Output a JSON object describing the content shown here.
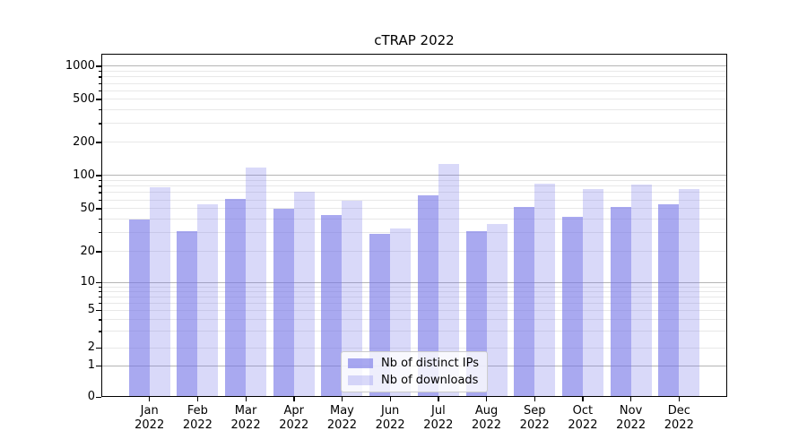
{
  "title": "cTRAP 2022",
  "chart_data": {
    "type": "bar",
    "title": "cTRAP 2022",
    "categories": [
      "Jan 2022",
      "Feb 2022",
      "Mar 2022",
      "Apr 2022",
      "May 2022",
      "Jun 2022",
      "Jul 2022",
      "Aug 2022",
      "Sep 2022",
      "Oct 2022",
      "Nov 2022",
      "Dec 2022"
    ],
    "series": [
      {
        "name": "Nb of distinct IPs",
        "color": "#a4a4ef",
        "values": [
          40,
          31,
          61,
          50,
          44,
          29,
          66,
          31,
          52,
          42,
          52,
          55
        ]
      },
      {
        "name": "Nb of downloads",
        "color": "#d9d9f8",
        "values": [
          78,
          55,
          118,
          71,
          59,
          33,
          128,
          36,
          85,
          75,
          83,
          76
        ]
      }
    ],
    "yscale": "symlog",
    "ylim": [
      0,
      1300
    ],
    "yticks": [
      0,
      1,
      2,
      5,
      10,
      20,
      50,
      100,
      200,
      500,
      1000
    ],
    "ytick_labels": [
      "0",
      "1",
      "2",
      "5",
      "10",
      "20",
      "50",
      "100",
      "200",
      "500",
      "1000"
    ],
    "major_gridlines": [
      1,
      10,
      100,
      1000
    ],
    "minor_gridlines": [
      2,
      3,
      4,
      5,
      6,
      7,
      8,
      9,
      20,
      30,
      40,
      50,
      60,
      70,
      80,
      90,
      200,
      300,
      400,
      500,
      600,
      700,
      800,
      900
    ],
    "grid": true,
    "legend_position": "lower center",
    "yscale_anchors": [
      [
        0,
        0
      ],
      [
        1,
        0.0913
      ],
      [
        2,
        0.1424
      ],
      [
        5,
        0.252
      ],
      [
        10,
        0.3329
      ],
      [
        20,
        0.4234
      ],
      [
        50,
        0.5487
      ],
      [
        100,
        0.6452
      ],
      [
        200,
        0.7417
      ],
      [
        500,
        0.8669
      ],
      [
        1000,
        0.9635
      ]
    ]
  },
  "colors": {
    "bar_ips": "#a4a4ef",
    "bar_downloads": "#d9d9f8",
    "major_grid": "#b5b5b5",
    "minor_grid": "#e8e8e8",
    "spine": "#000000",
    "legend_border": "#cccccc"
  }
}
